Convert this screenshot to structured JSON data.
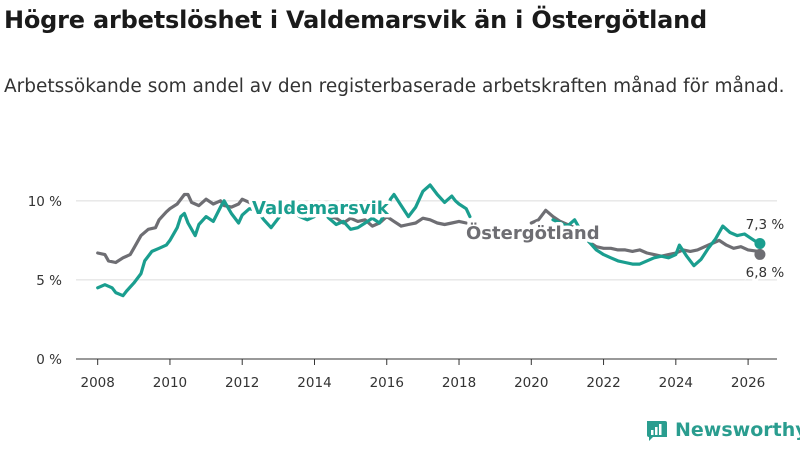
{
  "title": "Högre arbetslöshet i Valdemarsvik än i Östergötland",
  "subtitle": "Arbetssökande som andel av den registerbaserade arbetskraften månad för månad.",
  "brand": {
    "name": "Newsworthy",
    "icon": "newsworthy-logo-icon"
  },
  "colors": {
    "valdemarsvik": "#1a9e8f",
    "ostergotland": "#6e6e73",
    "grid": "#dcdcdc"
  },
  "chart_data": {
    "type": "line",
    "title": "Högre arbetslöshet i Valdemarsvik än i Östergötland",
    "xlabel": "",
    "ylabel": "",
    "xlim": [
      2007.4,
      2026.8
    ],
    "ylim": [
      0,
      11
    ],
    "x_ticks": [
      2008,
      2010,
      2012,
      2014,
      2016,
      2018,
      2020,
      2022,
      2024,
      2026
    ],
    "x_tick_labels": [
      "2008",
      "2010",
      "2012",
      "2014",
      "2016",
      "2018",
      "2020",
      "2022",
      "2024",
      "2026"
    ],
    "y_ticks": [
      0,
      5,
      10
    ],
    "y_tick_labels": [
      "0 %",
      "5 %",
      "10 %"
    ],
    "grid": true,
    "series": [
      {
        "name": "Valdemarsvik",
        "label": "Valdemarsvik",
        "end_label": "7,3 %",
        "points": [
          [
            2008.0,
            4.5
          ],
          [
            2008.2,
            4.7
          ],
          [
            2008.4,
            4.5
          ],
          [
            2008.5,
            4.2
          ],
          [
            2008.7,
            4.0
          ],
          [
            2008.8,
            4.3
          ],
          [
            2009.0,
            4.8
          ],
          [
            2009.2,
            5.4
          ],
          [
            2009.3,
            6.2
          ],
          [
            2009.5,
            6.8
          ],
          [
            2009.7,
            7.0
          ],
          [
            2009.9,
            7.2
          ],
          [
            2010.0,
            7.5
          ],
          [
            2010.2,
            8.3
          ],
          [
            2010.3,
            9.0
          ],
          [
            2010.4,
            9.2
          ],
          [
            2010.5,
            8.6
          ],
          [
            2010.7,
            7.8
          ],
          [
            2010.8,
            8.5
          ],
          [
            2011.0,
            9.0
          ],
          [
            2011.2,
            8.7
          ],
          [
            2011.4,
            9.6
          ],
          [
            2011.5,
            10.0
          ],
          [
            2011.7,
            9.2
          ],
          [
            2011.9,
            8.6
          ],
          [
            2012.0,
            9.1
          ],
          [
            2012.2,
            9.5
          ],
          [
            2012.4,
            9.4
          ],
          [
            2012.6,
            8.8
          ],
          [
            2012.8,
            8.3
          ],
          [
            2013.0,
            8.9
          ],
          [
            2013.2,
            9.5
          ],
          [
            2013.4,
            9.3
          ],
          [
            2013.6,
            9.0
          ],
          [
            2013.8,
            8.8
          ],
          [
            2014.0,
            9.0
          ],
          [
            2014.2,
            9.4
          ],
          [
            2014.4,
            8.9
          ],
          [
            2014.6,
            8.5
          ],
          [
            2014.8,
            8.7
          ],
          [
            2015.0,
            8.2
          ],
          [
            2015.2,
            8.3
          ],
          [
            2015.4,
            8.6
          ],
          [
            2015.6,
            8.9
          ],
          [
            2015.8,
            8.6
          ],
          [
            2016.0,
            9.4
          ],
          [
            2016.1,
            10.1
          ],
          [
            2016.2,
            10.4
          ],
          [
            2016.4,
            9.7
          ],
          [
            2016.6,
            9.0
          ],
          [
            2016.8,
            9.6
          ],
          [
            2017.0,
            10.6
          ],
          [
            2017.2,
            11.0
          ],
          [
            2017.4,
            10.4
          ],
          [
            2017.6,
            9.9
          ],
          [
            2017.8,
            10.3
          ],
          [
            2017.9,
            10.0
          ],
          [
            2018.0,
            9.8
          ],
          [
            2018.2,
            9.5
          ],
          [
            2018.3,
            9.0
          ]
        ]
      },
      {
        "name": "Östergötland",
        "label": "Östergötland",
        "end_label": "6,8 %",
        "points": [
          [
            2008.0,
            6.7
          ],
          [
            2008.2,
            6.6
          ],
          [
            2008.3,
            6.2
          ],
          [
            2008.5,
            6.1
          ],
          [
            2008.7,
            6.4
          ],
          [
            2008.9,
            6.6
          ],
          [
            2009.0,
            7.0
          ],
          [
            2009.2,
            7.8
          ],
          [
            2009.4,
            8.2
          ],
          [
            2009.6,
            8.3
          ],
          [
            2009.7,
            8.8
          ],
          [
            2009.9,
            9.3
          ],
          [
            2010.0,
            9.5
          ],
          [
            2010.2,
            9.8
          ],
          [
            2010.4,
            10.4
          ],
          [
            2010.5,
            10.4
          ],
          [
            2010.6,
            9.9
          ],
          [
            2010.8,
            9.7
          ],
          [
            2011.0,
            10.1
          ],
          [
            2011.2,
            9.8
          ],
          [
            2011.4,
            10.0
          ],
          [
            2011.5,
            9.7
          ],
          [
            2011.7,
            9.6
          ],
          [
            2011.9,
            9.8
          ],
          [
            2012.0,
            10.1
          ],
          [
            2012.2,
            9.9
          ],
          [
            2012.4,
            9.6
          ],
          [
            2012.6,
            9.4
          ],
          [
            2012.8,
            9.2
          ],
          [
            2013.0,
            9.6
          ],
          [
            2013.2,
            9.6
          ],
          [
            2013.4,
            9.3
          ],
          [
            2013.6,
            9.2
          ],
          [
            2013.8,
            9.1
          ],
          [
            2014.0,
            9.3
          ],
          [
            2014.2,
            9.2
          ],
          [
            2014.4,
            9.0
          ],
          [
            2014.6,
            8.9
          ],
          [
            2014.8,
            8.6
          ],
          [
            2015.0,
            8.9
          ],
          [
            2015.2,
            8.7
          ],
          [
            2015.4,
            8.8
          ],
          [
            2015.6,
            8.4
          ],
          [
            2015.8,
            8.6
          ],
          [
            2016.0,
            9.0
          ],
          [
            2016.2,
            8.7
          ],
          [
            2016.4,
            8.4
          ],
          [
            2016.6,
            8.5
          ],
          [
            2016.8,
            8.6
          ],
          [
            2017.0,
            8.9
          ],
          [
            2017.2,
            8.8
          ],
          [
            2017.4,
            8.6
          ],
          [
            2017.6,
            8.5
          ],
          [
            2017.8,
            8.6
          ],
          [
            2018.0,
            8.7
          ],
          [
            2018.2,
            8.6
          ]
        ]
      }
    ],
    "late_series": [
      {
        "name": "Valdemarsvik",
        "points": [
          [
            2020.6,
            8.8
          ],
          [
            2020.8,
            8.6
          ],
          [
            2021.0,
            8.4
          ],
          [
            2021.2,
            8.8
          ],
          [
            2021.4,
            8.0
          ],
          [
            2021.6,
            7.4
          ],
          [
            2021.8,
            6.9
          ],
          [
            2022.0,
            6.6
          ],
          [
            2022.2,
            6.4
          ],
          [
            2022.4,
            6.2
          ],
          [
            2022.6,
            6.1
          ],
          [
            2022.8,
            6.0
          ],
          [
            2023.0,
            6.0
          ],
          [
            2023.2,
            6.2
          ],
          [
            2023.4,
            6.4
          ],
          [
            2023.6,
            6.5
          ],
          [
            2023.8,
            6.4
          ],
          [
            2024.0,
            6.6
          ],
          [
            2024.1,
            7.2
          ],
          [
            2024.3,
            6.5
          ],
          [
            2024.5,
            5.9
          ],
          [
            2024.7,
            6.3
          ],
          [
            2024.9,
            7.0
          ],
          [
            2025.1,
            7.6
          ],
          [
            2025.3,
            8.4
          ],
          [
            2025.5,
            8.0
          ],
          [
            2025.7,
            7.8
          ],
          [
            2025.9,
            7.9
          ],
          [
            2026.1,
            7.6
          ],
          [
            2026.3,
            7.3
          ]
        ]
      },
      {
        "name": "Östergötland",
        "points": [
          [
            2020.0,
            8.6
          ],
          [
            2020.2,
            8.8
          ],
          [
            2020.4,
            9.4
          ],
          [
            2020.6,
            9.0
          ],
          [
            2020.8,
            8.7
          ],
          [
            2021.0,
            8.5
          ],
          [
            2021.2,
            8.3
          ],
          [
            2021.4,
            7.9
          ],
          [
            2021.6,
            7.4
          ],
          [
            2021.8,
            7.1
          ],
          [
            2022.0,
            7.0
          ],
          [
            2022.2,
            7.0
          ],
          [
            2022.4,
            6.9
          ],
          [
            2022.6,
            6.9
          ],
          [
            2022.8,
            6.8
          ],
          [
            2023.0,
            6.9
          ],
          [
            2023.2,
            6.7
          ],
          [
            2023.4,
            6.6
          ],
          [
            2023.6,
            6.5
          ],
          [
            2023.8,
            6.6
          ],
          [
            2024.0,
            6.7
          ],
          [
            2024.2,
            6.9
          ],
          [
            2024.4,
            6.8
          ],
          [
            2024.6,
            6.9
          ],
          [
            2024.8,
            7.1
          ],
          [
            2025.0,
            7.3
          ],
          [
            2025.2,
            7.5
          ],
          [
            2025.4,
            7.2
          ],
          [
            2025.6,
            7.0
          ],
          [
            2025.8,
            7.1
          ],
          [
            2026.0,
            6.9
          ],
          [
            2026.3,
            6.8
          ]
        ]
      }
    ]
  }
}
